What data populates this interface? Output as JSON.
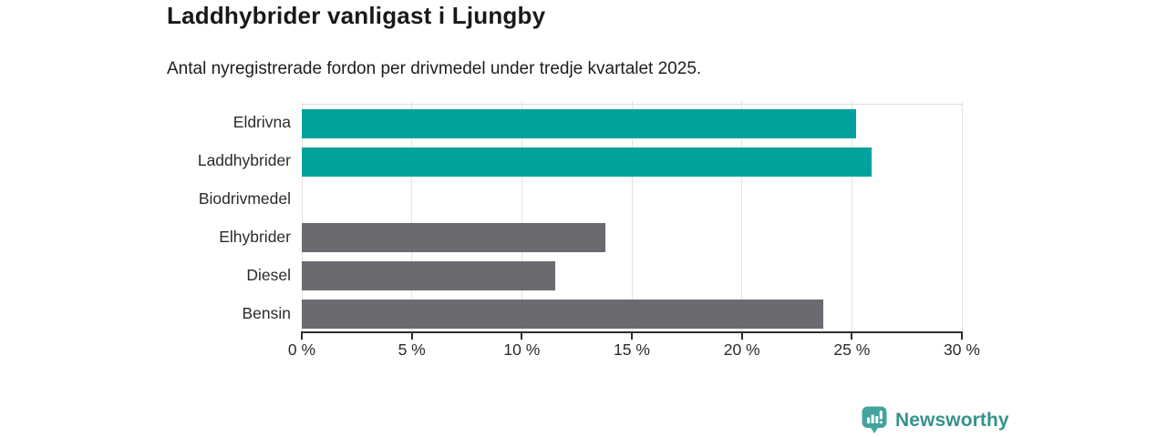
{
  "header": {
    "title": "Laddhybrider vanligast i Ljungby",
    "subtitle": "Antal nyregistrerade fordon per drivmedel under tredje kvartalet 2025."
  },
  "chart_data": {
    "type": "bar",
    "orientation": "horizontal",
    "title": "Laddhybrider vanligast i Ljungby",
    "subtitle": "Antal nyregistrerade fordon per drivmedel under tredje kvartalet 2025.",
    "categories": [
      "Eldrivna",
      "Laddhybrider",
      "Biodrivmedel",
      "Elhybrider",
      "Diesel",
      "Bensin"
    ],
    "values": [
      25.2,
      25.9,
      0,
      13.8,
      11.5,
      23.7
    ],
    "unit": "%",
    "xlim": [
      0,
      30
    ],
    "x_ticks": [
      0,
      5,
      10,
      15,
      20,
      25,
      30
    ],
    "x_tick_labels": [
      "0 %",
      "5 %",
      "10 %",
      "15 %",
      "20 %",
      "25 %",
      "30 %"
    ],
    "bar_colors": [
      "#00a29b",
      "#00a29b",
      "#6a6b70",
      "#6a6b70",
      "#6a6b70",
      "#6a6b70"
    ],
    "grid": true,
    "legend": false,
    "xlabel": "",
    "ylabel": ""
  },
  "colors": {
    "accent_teal": "#00a29b",
    "neutral_gray": "#6a6b70",
    "gridline": "#e3e3e3",
    "axis": "#2e2e2e",
    "brand_teal": "#35928d",
    "brand_icon_teal": "#43a39d"
  },
  "footer": {
    "brand": "Newsworthy"
  }
}
